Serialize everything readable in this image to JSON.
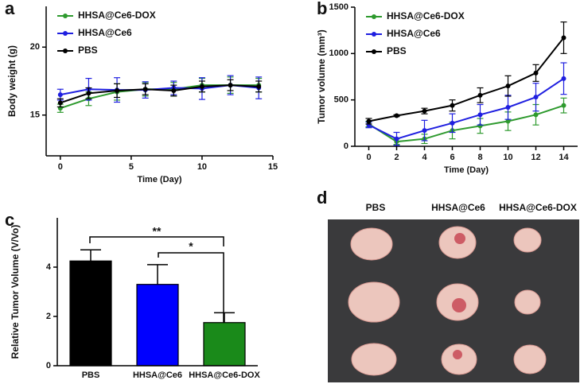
{
  "chart_data": [
    {
      "type": "line",
      "panel": "a",
      "xlabel": "Time (Day)",
      "ylabel": "Body weight (g)",
      "x": [
        0,
        2,
        4,
        6,
        8,
        10,
        12,
        14
      ],
      "xlim": [
        -1,
        15
      ],
      "xticks": [
        0,
        5,
        10,
        15
      ],
      "ylim": [
        12,
        23
      ],
      "yticks": [
        15,
        20
      ],
      "legend": "upper left",
      "series": [
        {
          "name": "HHSA@Ce6-DOX",
          "color": "#2e9a2e",
          "values": [
            15.5,
            16.2,
            16.7,
            16.9,
            16.9,
            17.2,
            17.2,
            17.2
          ],
          "errors": [
            0.3,
            0.5,
            0.6,
            0.5,
            0.5,
            0.5,
            0.6,
            0.5
          ]
        },
        {
          "name": "HHSA@Ce6",
          "color": "#1f1fe0",
          "values": [
            16.5,
            16.9,
            16.85,
            16.85,
            17.0,
            16.95,
            17.2,
            17.0
          ],
          "errors": [
            0.4,
            0.8,
            0.9,
            0.6,
            0.5,
            0.8,
            0.7,
            0.8
          ]
        },
        {
          "name": "PBS",
          "color": "#000000",
          "values": [
            15.9,
            16.6,
            16.8,
            16.9,
            16.8,
            17.1,
            17.2,
            17.1
          ],
          "errors": [
            0.3,
            0.4,
            0.5,
            0.4,
            0.4,
            0.4,
            0.4,
            0.4
          ]
        }
      ]
    },
    {
      "type": "line",
      "panel": "b",
      "xlabel": "Time (Day)",
      "ylabel": "Tumor volume (mm³)",
      "x": [
        0,
        2,
        4,
        6,
        8,
        10,
        12,
        14
      ],
      "xlim": [
        -1,
        15
      ],
      "xticks": [
        0,
        2,
        4,
        6,
        8,
        10,
        12,
        14
      ],
      "ylim": [
        0,
        1500
      ],
      "yticks": [
        0,
        500,
        1000,
        1500
      ],
      "legend": "upper left",
      "series": [
        {
          "name": "HHSA@Ce6-DOX",
          "color": "#2e9a2e",
          "values": [
            240,
            50,
            80,
            170,
            220,
            270,
            340,
            440
          ],
          "errors": [
            30,
            30,
            50,
            90,
            80,
            100,
            110,
            80
          ]
        },
        {
          "name": "HHSA@Ce6",
          "color": "#1f1fe0",
          "values": [
            230,
            80,
            170,
            250,
            340,
            420,
            530,
            730
          ],
          "errors": [
            30,
            70,
            110,
            100,
            110,
            130,
            150,
            170
          ]
        },
        {
          "name": "PBS",
          "color": "#000000",
          "values": [
            270,
            330,
            380,
            440,
            550,
            650,
            790,
            1170
          ],
          "errors": [
            30,
            10,
            30,
            60,
            80,
            110,
            90,
            170
          ]
        }
      ]
    },
    {
      "type": "bar",
      "panel": "c",
      "ylabel": "Relative Tumor Volume (V/Vo)",
      "categories": [
        "PBS",
        "HHSA@Ce6",
        "HHSA@Ce6-DOX"
      ],
      "values": [
        4.25,
        3.3,
        1.75
      ],
      "errors": [
        0.45,
        0.8,
        0.4
      ],
      "colors": [
        "#000000",
        "#0000ff",
        "#1a8a1a"
      ],
      "ylim": [
        0,
        6
      ],
      "yticks": [
        0,
        2,
        4
      ],
      "annotations": [
        "**",
        "*"
      ]
    },
    {
      "type": "photo",
      "panel": "d",
      "columns": [
        "PBS",
        "HHSA@Ce6",
        "HHSA@Ce6-DOX"
      ]
    }
  ]
}
